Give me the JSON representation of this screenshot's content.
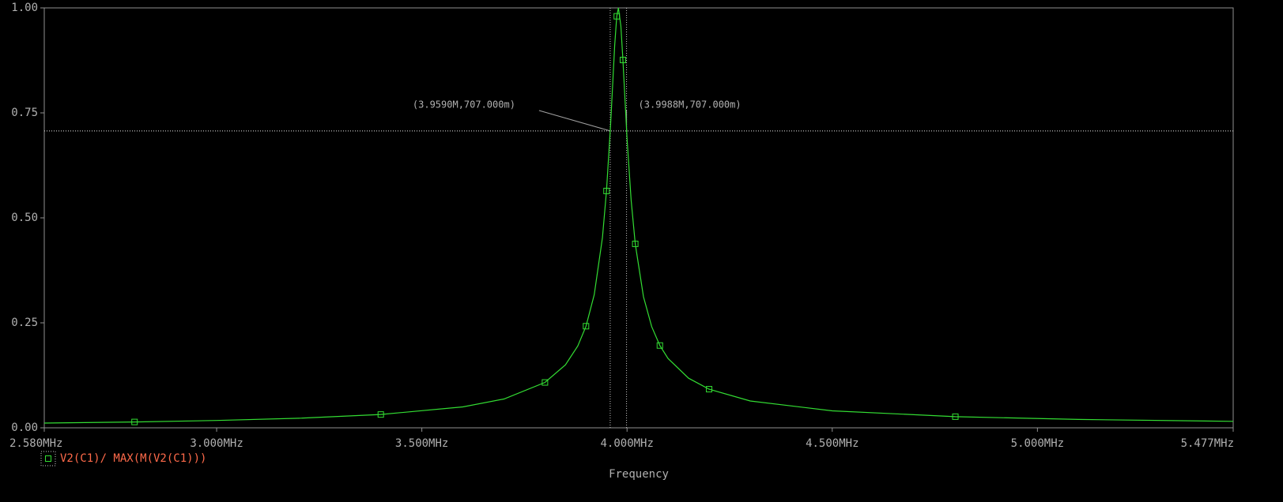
{
  "chart_data": {
    "type": "line",
    "x_label": "Frequency",
    "x": [
      2.58,
      2.8,
      3.0,
      3.2,
      3.4,
      3.6,
      3.7,
      3.8,
      3.85,
      3.88,
      3.9,
      3.92,
      3.94,
      3.95,
      3.96,
      3.97,
      3.975,
      3.979,
      3.985,
      3.99,
      4.0,
      4.01,
      4.02,
      4.04,
      4.06,
      4.08,
      4.1,
      4.15,
      4.2,
      4.3,
      4.5,
      4.8,
      5.1,
      5.477
    ],
    "series": [
      {
        "name": "V2(C1)/ MAX(M(V2(C1)))",
        "color": "#33dd33",
        "values": [
          0.0112,
          0.0139,
          0.0175,
          0.0228,
          0.0317,
          0.0498,
          0.0686,
          0.108,
          0.15,
          0.195,
          0.242,
          0.317,
          0.453,
          0.564,
          0.722,
          0.911,
          0.98,
          1.0,
          0.957,
          0.876,
          0.689,
          0.542,
          0.438,
          0.312,
          0.241,
          0.196,
          0.165,
          0.118,
          0.092,
          0.064,
          0.0405,
          0.0265,
          0.0199,
          0.0154
        ]
      }
    ],
    "xlim": [
      2.58,
      5.477
    ],
    "ylim": [
      0,
      1
    ],
    "xticks": [
      {
        "value": 2.58,
        "label": "2.580MHz"
      },
      {
        "value": 3.0,
        "label": "3.000MHz"
      },
      {
        "value": 3.5,
        "label": "3.500MHz"
      },
      {
        "value": 4.0,
        "label": "4.000MHz"
      },
      {
        "value": 4.5,
        "label": "4.500MHz"
      },
      {
        "value": 5.0,
        "label": "5.000MHz"
      },
      {
        "value": 5.477,
        "label": "5.477MHz"
      }
    ],
    "yticks": [
      {
        "value": 0,
        "label": "0.00"
      },
      0.25,
      {
        "value": 0.5,
        "label": "0.50"
      },
      0.75,
      {
        "value": 1,
        "label": "1.00"
      }
    ],
    "cursors": [
      {
        "x": 3.959,
        "y": 0.707,
        "label": "(3.9590M,707.000m)"
      },
      {
        "x": 3.9988,
        "y": 0.707,
        "label": "(3.9988M,707.000m)"
      }
    ]
  }
}
